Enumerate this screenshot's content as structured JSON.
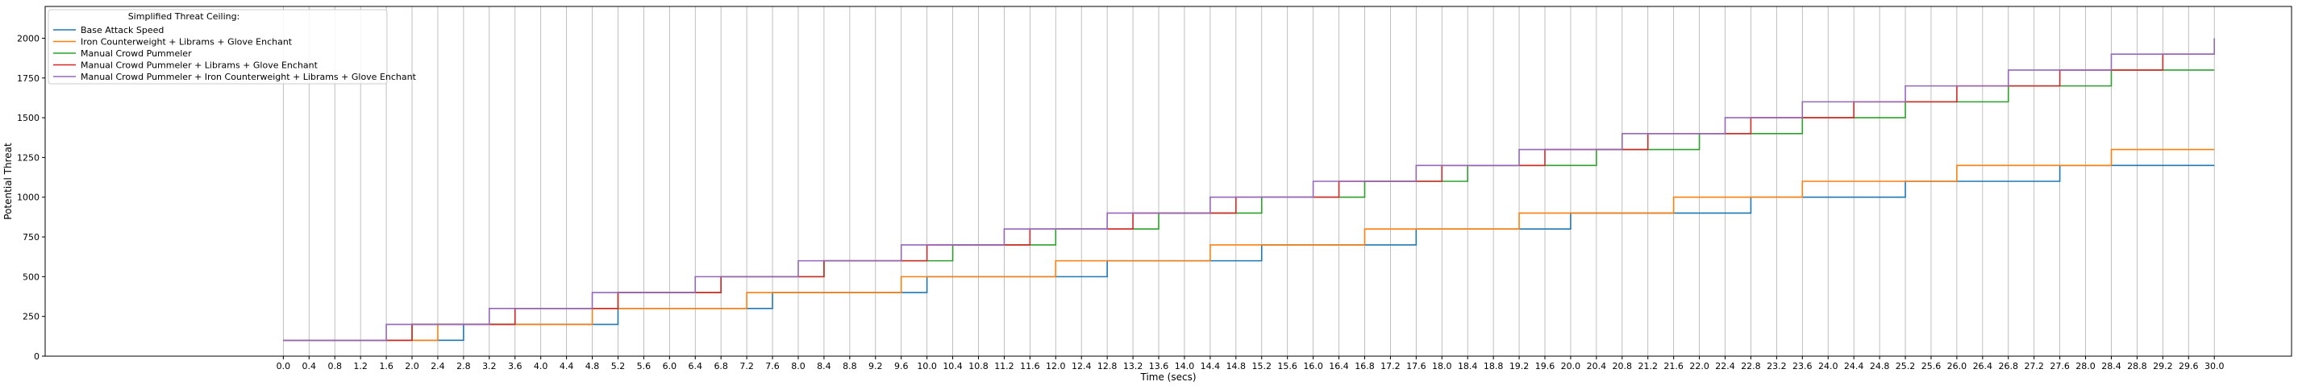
{
  "chart_data": {
    "type": "line",
    "step": "post",
    "xlabel": "Time (secs)",
    "ylabel": "Potential Threat",
    "xlim": [
      -3.7,
      31.2
    ],
    "ylim": [
      0,
      2200
    ],
    "x_ticks": [
      "0.0",
      "0.4",
      "0.8",
      "1.2",
      "1.6",
      "2.0",
      "2.4",
      "2.8",
      "3.2",
      "3.6",
      "4.0",
      "4.4",
      "4.8",
      "5.2",
      "5.6",
      "6.0",
      "6.4",
      "6.8",
      "7.2",
      "7.6",
      "8.0",
      "8.4",
      "8.8",
      "9.2",
      "9.6",
      "10.0",
      "10.4",
      "10.8",
      "11.2",
      "11.6",
      "12.0",
      "12.4",
      "12.8",
      "13.2",
      "13.6",
      "14.0",
      "14.4",
      "14.8",
      "15.2",
      "15.6",
      "16.0",
      "16.4",
      "16.8",
      "17.2",
      "17.6",
      "18.0",
      "18.4",
      "18.8",
      "19.2",
      "19.6",
      "20.0",
      "20.4",
      "20.8",
      "21.2",
      "21.6",
      "22.0",
      "22.4",
      "22.8",
      "23.2",
      "23.6",
      "24.0",
      "24.4",
      "24.8",
      "25.2",
      "25.6",
      "26.0",
      "26.4",
      "26.8",
      "27.2",
      "27.6",
      "28.0",
      "28.4",
      "28.8",
      "29.2",
      "29.6",
      "30.0"
    ],
    "y_ticks": [
      "0",
      "250",
      "500",
      "750",
      "1000",
      "1250",
      "1500",
      "1750",
      "2000"
    ],
    "grid": "x-vertical",
    "legend": {
      "title": "Simplified Threat Ceiling:",
      "placement": "top-left"
    },
    "series": [
      {
        "name": "Base Attack Speed",
        "color": "#1f77b4",
        "x_end": 30.0,
        "step_times": [
          0,
          2.8,
          5.2,
          7.6,
          10.0,
          12.8,
          15.2,
          17.6,
          20.0,
          22.8,
          25.2,
          27.6
        ]
      },
      {
        "name": "Iron Counterweight + Librams + Glove Enchant",
        "color": "#ff7f0e",
        "x_end": 30.0,
        "step_times": [
          0,
          2.4,
          4.8,
          7.2,
          9.6,
          12.0,
          14.4,
          16.8,
          19.2,
          21.6,
          23.6,
          26.0,
          28.4
        ]
      },
      {
        "name": "Manual Crowd Pummeler",
        "color": "#2ca02c",
        "x_end": 30.0,
        "step_times": [
          0,
          2.0,
          3.6,
          5.2,
          6.8,
          8.4,
          10.4,
          12.0,
          13.6,
          15.2,
          16.8,
          18.4,
          20.4,
          22.0,
          23.6,
          25.2,
          26.8,
          28.4
        ]
      },
      {
        "name": "Manual Crowd Pummeler + Librams + Glove Enchant",
        "color": "#d62728",
        "x_end": 30.0,
        "step_times": [
          0,
          2.0,
          3.6,
          5.2,
          6.8,
          8.4,
          10.0,
          11.6,
          13.2,
          14.8,
          16.4,
          18.0,
          19.6,
          21.2,
          22.8,
          24.4,
          26.0,
          27.6,
          29.2
        ]
      },
      {
        "name": "Manual Crowd Pummeler + Iron Counterweight + Librams + Glove Enchant",
        "color": "#9467bd",
        "x_end": 30.0,
        "step_times": [
          0,
          1.6,
          3.2,
          4.8,
          6.4,
          8.0,
          9.6,
          11.2,
          12.8,
          14.4,
          16.0,
          17.6,
          19.2,
          20.8,
          22.4,
          23.6,
          25.2,
          26.8,
          28.4,
          30.0
        ]
      }
    ],
    "first_value": 100,
    "step_increment": 100
  }
}
